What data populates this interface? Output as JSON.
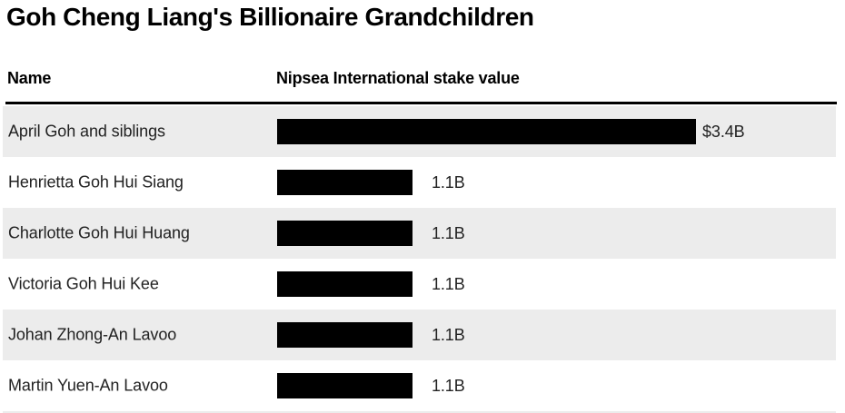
{
  "chart": {
    "title": "Goh Cheng Liang's Billionaire Grandchildren",
    "columns": {
      "name": "Name",
      "value": "Nipsea International stake value"
    }
  },
  "chart_data": {
    "type": "bar",
    "orientation": "horizontal",
    "title": "Goh Cheng Liang's Billionaire Grandchildren",
    "value_axis_label": "Nipsea International stake value",
    "categories": [
      "April Goh and siblings",
      "Henrietta Goh Hui Siang",
      "Charlotte Goh Hui Huang",
      "Victoria Goh Hui Kee",
      "Johan Zhong-An Lavoo",
      "Martin Yuen-An Lavoo"
    ],
    "values": [
      3.4,
      1.1,
      1.1,
      1.1,
      1.1,
      1.1
    ],
    "value_labels": [
      "$3.4B",
      "1.1B",
      "1.1B",
      "1.1B",
      "1.1B",
      "1.1B"
    ],
    "unit": "USD billions",
    "xlim": [
      0,
      3.4
    ],
    "grid": false,
    "legend": false,
    "bar_color": "#000000",
    "row_alt_bg": "#ececec",
    "text_color": "#222222"
  }
}
